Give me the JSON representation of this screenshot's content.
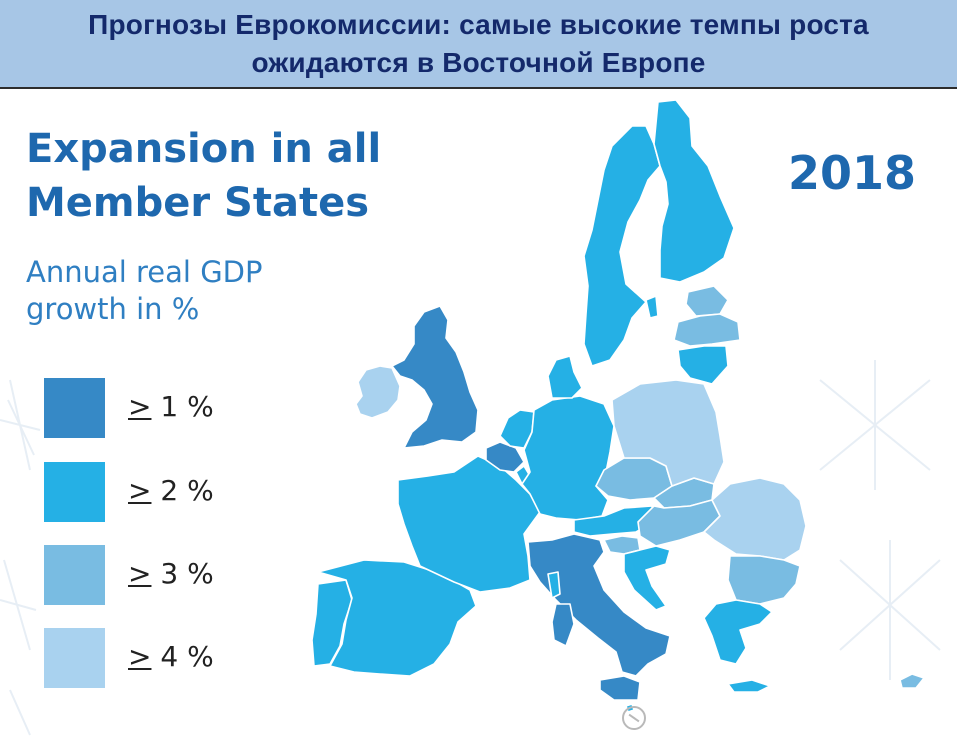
{
  "banner": {
    "line1": "Прогнозы Еврокомиссии: самые высокие темпы роста",
    "line2": "ожидаются в Восточной Европе"
  },
  "headline": {
    "line1": "Expansion in all",
    "line2": "Member States"
  },
  "subtitle": {
    "line1": "Annual real GDP",
    "line2": "growth in %"
  },
  "year": "2018",
  "legend": [
    {
      "symbol": ">",
      "value": "1 %",
      "color": "#3689c6"
    },
    {
      "symbol": ">",
      "value": "2 %",
      "color": "#25b0e5"
    },
    {
      "symbol": ">",
      "value": "3 %",
      "color": "#79bce2"
    },
    {
      "symbol": ">",
      "value": "4 %",
      "color": "#a9d2ef"
    }
  ],
  "icons": {
    "compass": "compass-icon"
  },
  "map": {
    "regions": [
      {
        "id": "ie",
        "name": "Ireland",
        "class": 4
      },
      {
        "id": "uk",
        "name": "United Kingdom",
        "class": 1
      },
      {
        "id": "pt",
        "name": "Portugal",
        "class": 2
      },
      {
        "id": "es",
        "name": "Spain",
        "class": 2
      },
      {
        "id": "fr",
        "name": "France",
        "class": 2
      },
      {
        "id": "be",
        "name": "Belgium",
        "class": 1
      },
      {
        "id": "nl",
        "name": "Netherlands",
        "class": 2
      },
      {
        "id": "lu",
        "name": "Luxembourg",
        "class": 2
      },
      {
        "id": "de",
        "name": "Germany",
        "class": 2
      },
      {
        "id": "dk",
        "name": "Denmark",
        "class": 2
      },
      {
        "id": "it",
        "name": "Italy",
        "class": 1
      },
      {
        "id": "at",
        "name": "Austria",
        "class": 2
      },
      {
        "id": "cz",
        "name": "Czech Republic",
        "class": 3
      },
      {
        "id": "sk",
        "name": "Slovakia",
        "class": 3
      },
      {
        "id": "si",
        "name": "Slovenia",
        "class": 3
      },
      {
        "id": "hr",
        "name": "Croatia",
        "class": 2
      },
      {
        "id": "pl",
        "name": "Poland",
        "class": 4
      },
      {
        "id": "hu",
        "name": "Hungary",
        "class": 3
      },
      {
        "id": "ro",
        "name": "Romania",
        "class": 4
      },
      {
        "id": "bg",
        "name": "Bulgaria",
        "class": 3
      },
      {
        "id": "gr",
        "name": "Greece",
        "class": 2
      },
      {
        "id": "cy",
        "name": "Cyprus",
        "class": 3
      },
      {
        "id": "mt",
        "name": "Malta",
        "class": 2
      },
      {
        "id": "se",
        "name": "Sweden",
        "class": 2
      },
      {
        "id": "fi",
        "name": "Finland",
        "class": 2
      },
      {
        "id": "ee",
        "name": "Estonia",
        "class": 3
      },
      {
        "id": "lv",
        "name": "Latvia",
        "class": 3
      },
      {
        "id": "lt",
        "name": "Lithuania",
        "class": 2
      }
    ]
  }
}
